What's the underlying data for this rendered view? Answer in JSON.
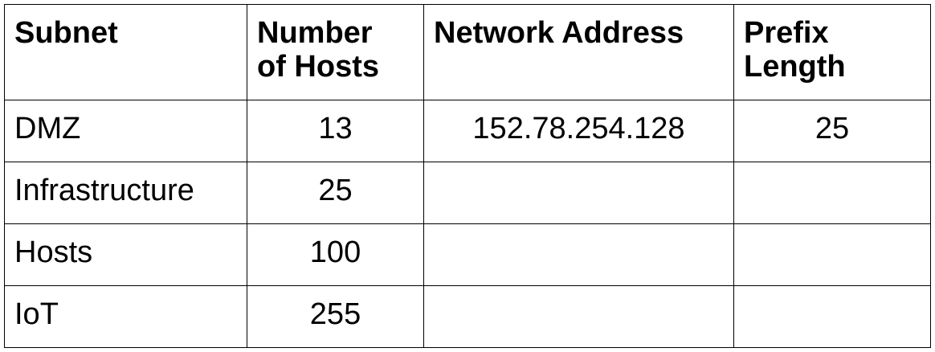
{
  "table": {
    "headers": [
      "Subnet",
      "Number of Hosts",
      "Network Address",
      "Prefix Length"
    ],
    "header_lines": {
      "subnet": "Subnet",
      "hosts_1": "Number",
      "hosts_2": "of Hosts",
      "network": "Network Address",
      "prefix_1": "Prefix",
      "prefix_2": "Length"
    },
    "rows": [
      {
        "subnet": "DMZ",
        "hosts": "13",
        "network": "152.78.254.128",
        "prefix": "25"
      },
      {
        "subnet": "Infrastructure",
        "hosts": "25",
        "network": "",
        "prefix": ""
      },
      {
        "subnet": "Hosts",
        "hosts": "100",
        "network": "",
        "prefix": ""
      },
      {
        "subnet": "IoT",
        "hosts": "255",
        "network": "",
        "prefix": ""
      }
    ]
  }
}
